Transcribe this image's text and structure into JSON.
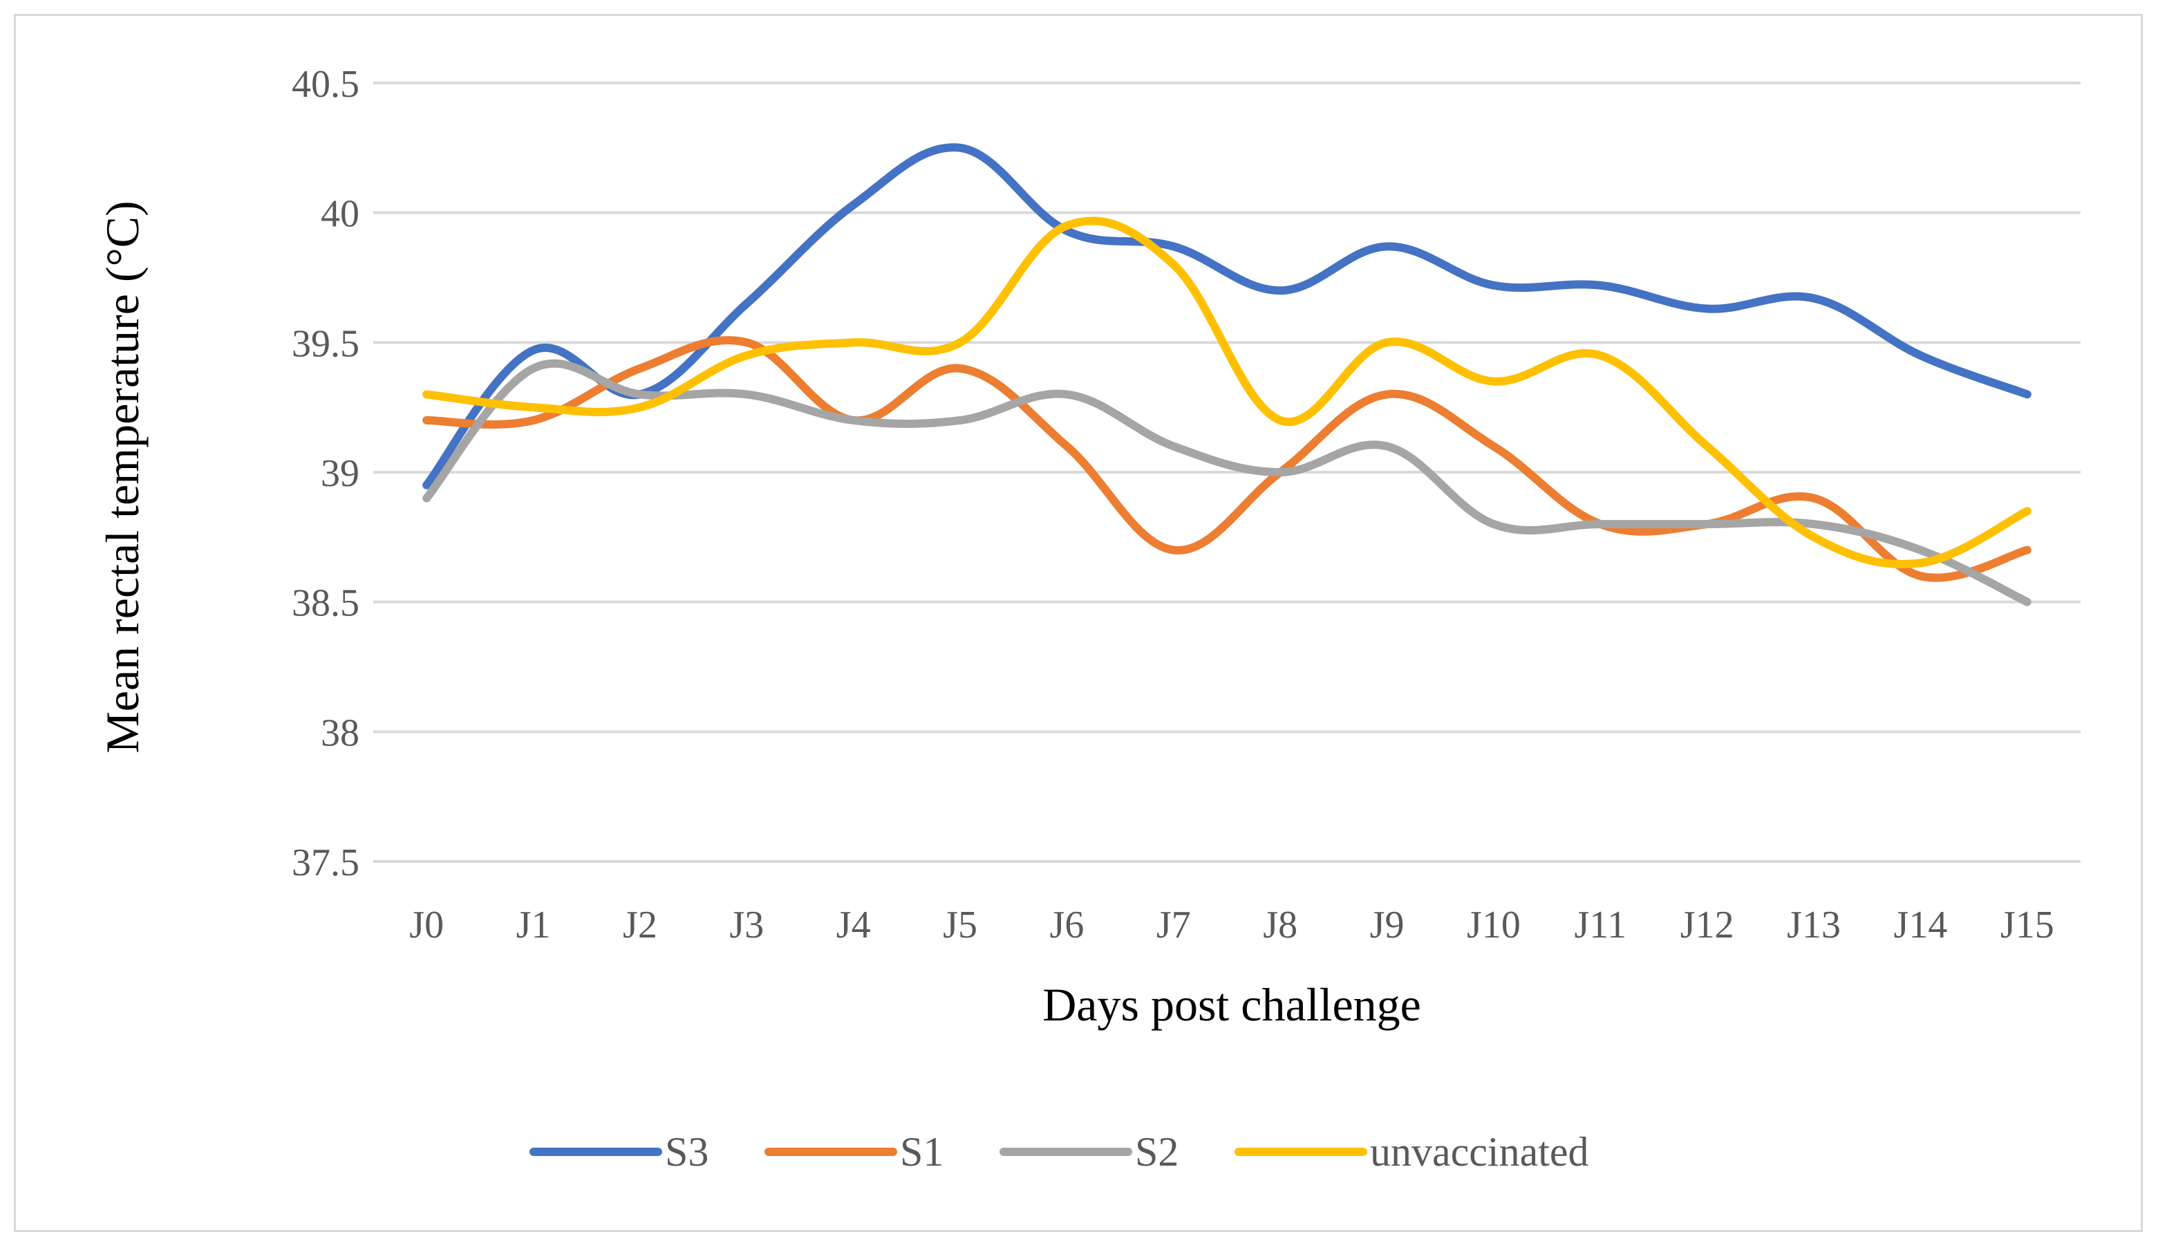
{
  "chart_data": {
    "type": "line",
    "title": "",
    "xlabel": "Days post challenge",
    "ylabel": "Mean rectal temperature (°C)",
    "ylim": [
      37.5,
      40.5
    ],
    "yticks": [
      37.5,
      38,
      38.5,
      39,
      39.5,
      40,
      40.5
    ],
    "ytick_labels": [
      "37.5",
      "38",
      "38.5",
      "39",
      "39.5",
      "40",
      "40.5"
    ],
    "grid": true,
    "legend_position": "bottom",
    "categories": [
      "J0",
      "J1",
      "J2",
      "J3",
      "J4",
      "J5",
      "J6",
      "J7",
      "J8",
      "J9",
      "J10",
      "J11",
      "J12",
      "J13",
      "J14",
      "J15"
    ],
    "series": [
      {
        "name": "S3",
        "color": "#4472C4",
        "values": [
          38.95,
          39.47,
          39.3,
          39.65,
          40.03,
          40.25,
          39.93,
          39.87,
          39.7,
          39.87,
          39.72,
          39.72,
          39.63,
          39.67,
          39.45,
          39.3
        ]
      },
      {
        "name": "S1",
        "color": "#ED7D31",
        "values": [
          39.2,
          39.2,
          39.4,
          39.5,
          39.2,
          39.4,
          39.1,
          38.7,
          39.0,
          39.3,
          39.1,
          38.8,
          38.8,
          38.9,
          38.6,
          38.7
        ]
      },
      {
        "name": "S2",
        "color": "#A5A5A5",
        "values": [
          38.9,
          39.4,
          39.3,
          39.3,
          39.2,
          39.2,
          39.3,
          39.1,
          39.0,
          39.1,
          38.8,
          38.8,
          38.8,
          38.8,
          38.7,
          38.5
        ]
      },
      {
        "name": "unvaccinated",
        "color": "#FFC000",
        "values": [
          39.3,
          39.25,
          39.25,
          39.45,
          39.5,
          39.5,
          39.95,
          39.8,
          39.2,
          39.5,
          39.35,
          39.45,
          39.1,
          38.75,
          38.65,
          38.85
        ]
      }
    ]
  }
}
